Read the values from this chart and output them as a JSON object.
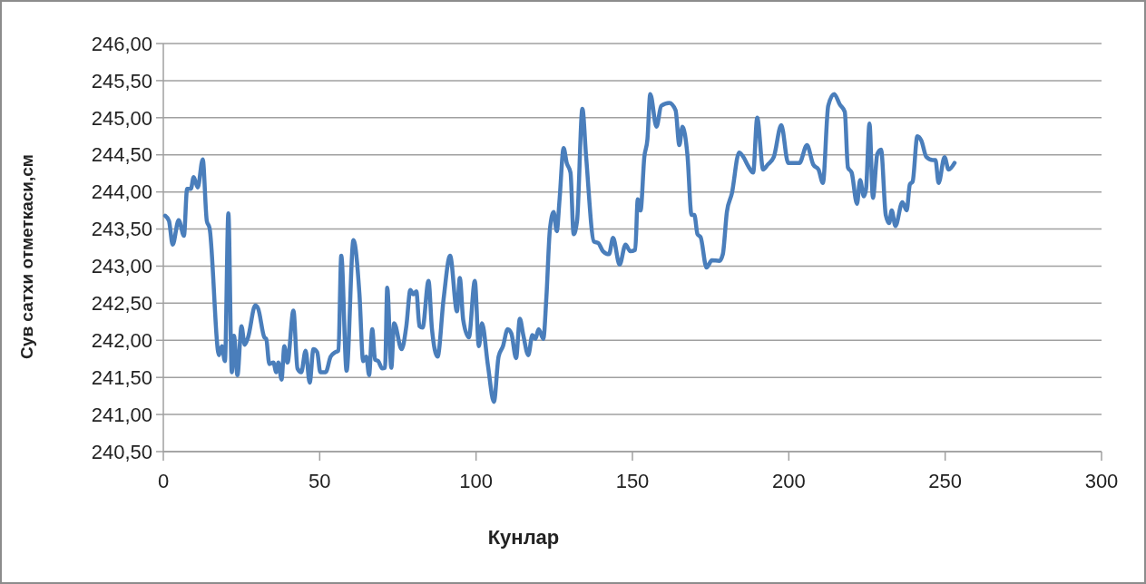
{
  "chart_data": {
    "type": "line",
    "xlabel": "Кунлар",
    "ylabel": "Сув сатхи отметкаси,см",
    "xlim": [
      0,
      300
    ],
    "xticks": [
      0,
      50,
      100,
      150,
      200,
      250,
      300
    ],
    "ylim": [
      240.5,
      246
    ],
    "yticks": [
      {
        "value": 240.5,
        "label": "240,50"
      },
      {
        "value": 241,
        "label": "241,00"
      },
      {
        "value": 241.5,
        "label": "241,50"
      },
      {
        "value": 242,
        "label": "242,00"
      },
      {
        "value": 242.5,
        "label": "242,50"
      },
      {
        "value": 243,
        "label": "243,00"
      },
      {
        "value": 243.5,
        "label": "243,50"
      },
      {
        "value": 244,
        "label": "244,00"
      },
      {
        "value": 244.5,
        "label": "244,50"
      },
      {
        "value": 245,
        "label": "245,00"
      },
      {
        "value": 245.5,
        "label": "245,50"
      },
      {
        "value": 246,
        "label": "246,00"
      }
    ],
    "grid": "y",
    "marker": "none",
    "line_style": "solid",
    "series": [
      {
        "color": "#4a7ebb",
        "x": [
          0.6,
          1.8,
          3,
          4.9,
          6.6,
          7.6,
          8.8,
          9.7,
          11,
          12.6,
          13.9,
          14.8,
          17.8,
          18.7,
          19.7,
          20.8,
          21.9,
          22.6,
          23.7,
          25,
          26,
          27.1,
          29.4,
          30.3,
          32.3,
          32.9,
          33.9,
          35.2,
          36.1,
          36.8,
          37.8,
          38.7,
          39.7,
          41.6,
          42.9,
          44.1,
          45.5,
          46.8,
          48,
          49.2,
          50.2,
          51.9,
          53.5,
          55,
          56,
          56.9,
          58.6,
          60.8,
          62.7,
          63.9,
          64.9,
          65.8,
          66.8,
          67.7,
          68.7,
          70,
          70.9,
          71.6,
          72.9,
          73.8,
          76.2,
          77.7,
          79,
          79.9,
          80.9,
          81.9,
          82.9,
          84.8,
          85.9,
          87.7,
          89.6,
          91.7,
          93.9,
          94.8,
          95.9,
          97.7,
          99.6,
          100.9,
          101.9,
          103.8,
          105.7,
          107.2,
          108.6,
          110.1,
          111.3,
          112.8,
          114,
          115.1,
          116.7,
          118,
          119,
          120,
          121.5,
          122.5,
          123.6,
          124.8,
          125.8,
          126.7,
          128,
          129,
          130.2,
          131.2,
          132.3,
          134,
          135.2,
          137.7,
          139.1,
          140.6,
          142.5,
          143.8,
          145.9,
          147.8,
          149.3,
          150.9,
          151.7,
          152.6,
          153.8,
          154.8,
          155.7,
          157.7,
          159.2,
          161.8,
          163.8,
          165,
          166,
          167.6,
          168.9,
          169.8,
          170.8,
          171.8,
          173.7,
          175.4,
          177.8,
          178.9,
          180.2,
          181.8,
          184.1,
          185.5,
          187,
          188.6,
          189.9,
          191.8,
          193.3,
          195.2,
          197.6,
          199.8,
          203.4,
          205.8,
          207.8,
          209.5,
          210.9,
          212.6,
          214.5,
          216.3,
          217.9,
          218.9,
          220.1,
          221.8,
          222.8,
          224,
          224.7,
          225.8,
          226.9,
          228.3,
          229.5,
          231,
          232.1,
          232.9,
          234.1,
          236.3,
          237.7,
          238.7,
          239.6,
          241.1,
          242.4,
          244,
          246,
          246.9,
          247.9,
          249.8,
          251.1,
          253
        ],
        "values": [
          243.68,
          243.61,
          243.29,
          243.62,
          243.41,
          244.04,
          244.04,
          244.2,
          244.06,
          244.44,
          243.61,
          243.51,
          241.8,
          241.92,
          241.72,
          243.71,
          241.57,
          242.06,
          241.53,
          242.19,
          241.94,
          242.04,
          242.47,
          242.43,
          242.04,
          242.02,
          241.68,
          241.7,
          241.57,
          241.7,
          241.47,
          241.92,
          241.7,
          242.4,
          241.62,
          241.57,
          241.86,
          241.43,
          241.88,
          241.84,
          241.57,
          241.57,
          241.78,
          241.84,
          241.86,
          243.14,
          241.59,
          243.35,
          242.63,
          241.72,
          241.78,
          241.53,
          242.15,
          241.74,
          241.72,
          241.62,
          241.63,
          242.71,
          241.63,
          242.23,
          241.88,
          242.19,
          242.68,
          242.62,
          242.66,
          242.19,
          242.17,
          242.8,
          242.15,
          241.78,
          242.55,
          243.14,
          242.39,
          242.84,
          242.27,
          242.04,
          242.8,
          241.92,
          242.23,
          241.66,
          241.17,
          241.78,
          241.92,
          242.15,
          242.09,
          241.76,
          242.29,
          242.07,
          241.8,
          242.07,
          242.02,
          242.15,
          242.02,
          242.59,
          243.49,
          243.73,
          243.47,
          243.9,
          244.59,
          244.39,
          244.26,
          243.43,
          243.61,
          245.12,
          244.47,
          243.33,
          243.31,
          243.2,
          243.16,
          243.38,
          243.02,
          243.29,
          243.2,
          243.22,
          243.9,
          243.75,
          244.47,
          244.71,
          245.32,
          244.88,
          245.16,
          245.2,
          245.1,
          244.63,
          244.88,
          244.49,
          243.69,
          243.69,
          243.43,
          243.39,
          242.98,
          243.08,
          243.07,
          243.16,
          243.73,
          243.98,
          244.53,
          244.47,
          244.35,
          244.26,
          245,
          244.3,
          244.37,
          244.47,
          244.9,
          244.39,
          244.39,
          244.63,
          244.37,
          244.3,
          244.12,
          245.16,
          245.32,
          245.18,
          245.08,
          244.33,
          244.26,
          243.84,
          244.16,
          243.94,
          244.04,
          244.92,
          243.92,
          244.51,
          244.57,
          243.69,
          243.58,
          243.75,
          243.54,
          243.86,
          243.75,
          244.1,
          244.14,
          244.75,
          244.69,
          244.47,
          244.43,
          244.43,
          244.12,
          244.47,
          244.3,
          244.39
        ]
      }
    ]
  }
}
